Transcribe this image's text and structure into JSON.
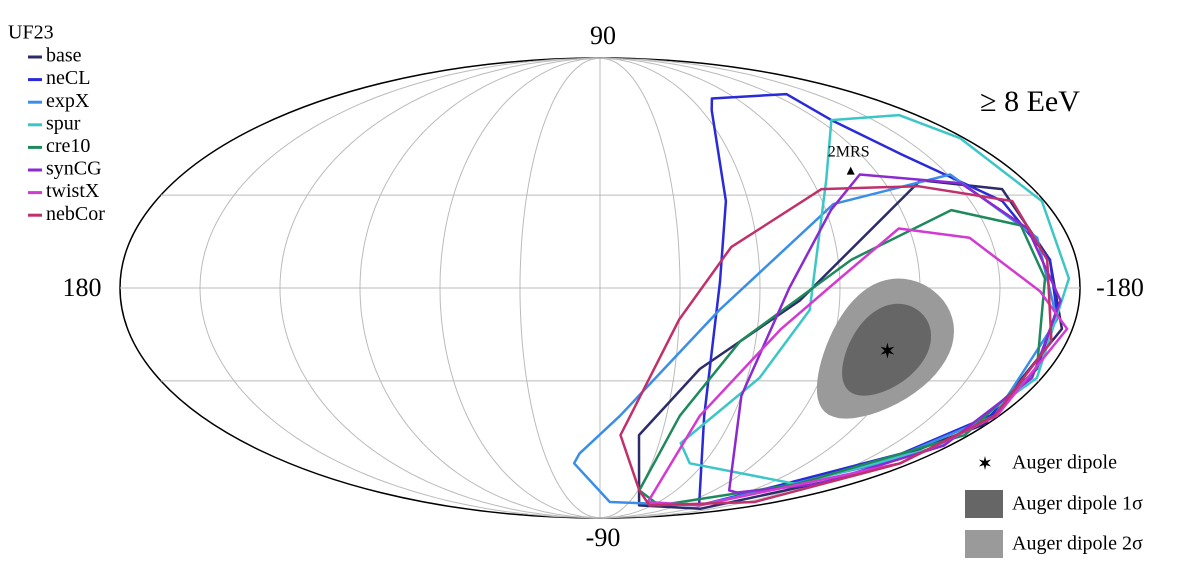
{
  "chart_data": {
    "type": "skymap",
    "projection": "mollweide",
    "xlim": [
      180,
      -180
    ],
    "ylim": [
      -90,
      90
    ],
    "grid_lon": [
      -150,
      -120,
      -90,
      -60,
      -30,
      0,
      30,
      60,
      90,
      120,
      150
    ],
    "grid_lat": [
      -30,
      0,
      30
    ],
    "legend_title": "UF23",
    "annotation": "≥ 8 EeV",
    "series": [
      {
        "name": "base",
        "color": "#2c2c6a",
        "x": [
          -45,
          -19,
          -40,
          -75,
          -136,
          -167,
          -170,
          -176,
          -179,
          -162,
          -134
        ],
        "values": [
          -80,
          -49,
          -26,
          -4,
          35,
          32,
          9,
          -13,
          -45,
          -66,
          -82
        ]
      },
      {
        "name": "neCL",
        "color": "#2a2ad8",
        "x": [
          -74,
          -130,
          -127,
          -139,
          -163,
          -170,
          -172,
          -175,
          -176,
          -163,
          -130,
          -114,
          -47,
          -45,
          -51,
          -66
        ],
        "values": [
          66,
          68,
          57,
          44,
          28,
          9,
          -7,
          -26,
          -42,
          -56,
          -70,
          -80,
          -42,
          2,
          28,
          61
        ]
      },
      {
        "name": "expX",
        "color": "#3a8ee8",
        "x": [
          11,
          -9,
          -45,
          -94,
          -151,
          -168,
          -173,
          -178,
          -163,
          -114,
          -10,
          15
        ],
        "values": [
          -56,
          -42,
          -7,
          27,
          37,
          16,
          -10,
          -42,
          -60,
          -80,
          -78,
          -60
        ]
      },
      {
        "name": "spur",
        "color": "#3cc6c6",
        "x": [
          -41,
          -65,
          -79,
          -96,
          -127,
          -170,
          -178,
          -179,
          -176,
          -178,
          -176,
          -141,
          -52
        ],
        "values": [
          -52,
          -29,
          -7,
          35,
          57,
          59,
          50,
          28,
          3,
          -29,
          -53,
          -69,
          -60
        ]
      },
      {
        "name": "cre10",
        "color": "#1e8a5c",
        "x": [
          -31,
          -36,
          -54,
          -95,
          -140,
          -164,
          -167,
          -175,
          -178,
          -141,
          -68
        ],
        "values": [
          -72,
          -42,
          -17,
          9,
          25,
          20,
          3,
          -26,
          -49,
          -69,
          -80
        ]
      },
      {
        "name": "synCG",
        "color": "#8a2ad0",
        "x": [
          -102,
          -60,
          -71,
          -92,
          -112,
          -152,
          -166,
          -173,
          -176,
          -177,
          -156,
          -112
        ],
        "values": [
          -72,
          -35,
          0,
          25,
          37,
          34,
          19,
          -4,
          -29,
          -53,
          -69,
          -73
        ]
      },
      {
        "name": "twistX",
        "color": "#d23ad2",
        "x": [
          -49,
          -45,
          -69,
          -90,
          -116,
          -142,
          -165,
          -178,
          -179,
          -174,
          -114
        ],
        "values": [
          -78,
          -42,
          -13,
          3,
          19,
          16,
          -1,
          -13,
          -42,
          -60,
          -80
        ]
      },
      {
        "name": "nebCor",
        "color": "#c0306a",
        "x": [
          -31,
          -10,
          -30,
          -50,
          -92,
          -133,
          -167,
          -169,
          -174,
          -178,
          -174,
          -158,
          -57
        ],
        "values": [
          -72,
          -49,
          -10,
          13,
          32,
          33,
          28,
          9,
          -17,
          -42,
          -60,
          -78,
          -80
        ]
      }
    ],
    "dipole": {
      "name": "Auger dipole",
      "lon": -112,
      "lat": -20,
      "regions": [
        {
          "name": "Auger dipole 2σ",
          "radius": 23,
          "color": "#9a9a9a"
        },
        {
          "name": "Auger dipole 1σ",
          "radius": 15,
          "color": "#666666"
        }
      ]
    },
    "source": {
      "name": "2MRS",
      "lon": -109,
      "lat": 38
    }
  }
}
